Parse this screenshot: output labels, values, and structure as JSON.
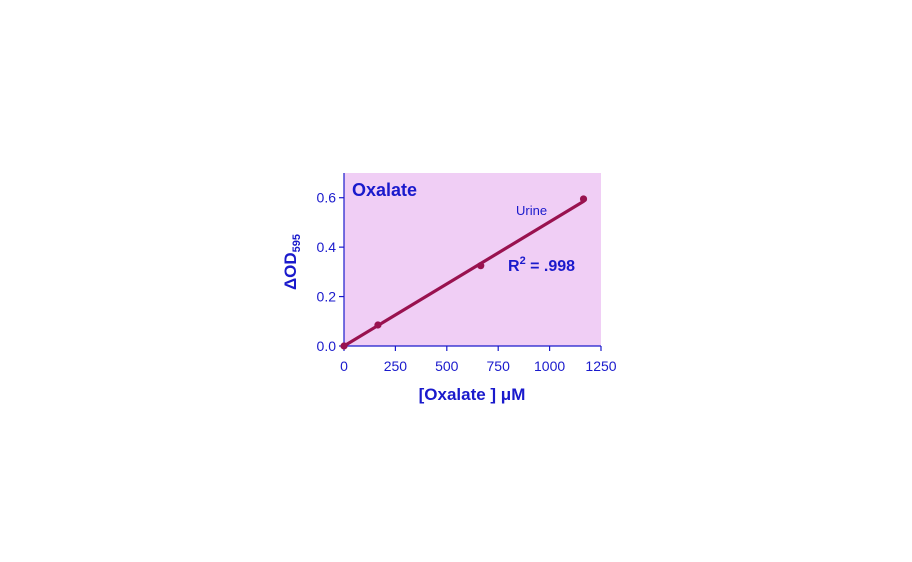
{
  "chart_data": {
    "type": "scatter",
    "title": "Oxalate",
    "xlabel": "[Oxalate ] μM",
    "ylabel": "ΔOD",
    "ylabel_subscript": "595",
    "xlim": [
      0,
      1250
    ],
    "ylim": [
      0,
      0.7
    ],
    "xticks": [
      0,
      250,
      500,
      750,
      1000,
      1250
    ],
    "yticks": [
      0.0,
      0.2,
      0.4,
      0.6
    ],
    "ytick_labels": [
      "0.0",
      "0.2",
      "0.4",
      "0.6"
    ],
    "grid": false,
    "series": [
      {
        "name": "Urine",
        "x": [
          0,
          165,
          665,
          1165
        ],
        "y": [
          0.0,
          0.085,
          0.325,
          0.595
        ],
        "fit_line": {
          "x": [
            0,
            1165
          ],
          "y": [
            0.0,
            0.585
          ]
        }
      }
    ],
    "annotation": {
      "text": "R",
      "superscript": "2",
      "suffix": " = .998"
    }
  },
  "colors": {
    "plot_background": "#f0cef5",
    "axis_text": "#1a1acc",
    "series": "#99124f",
    "axis_line": "#1a1acc"
  }
}
